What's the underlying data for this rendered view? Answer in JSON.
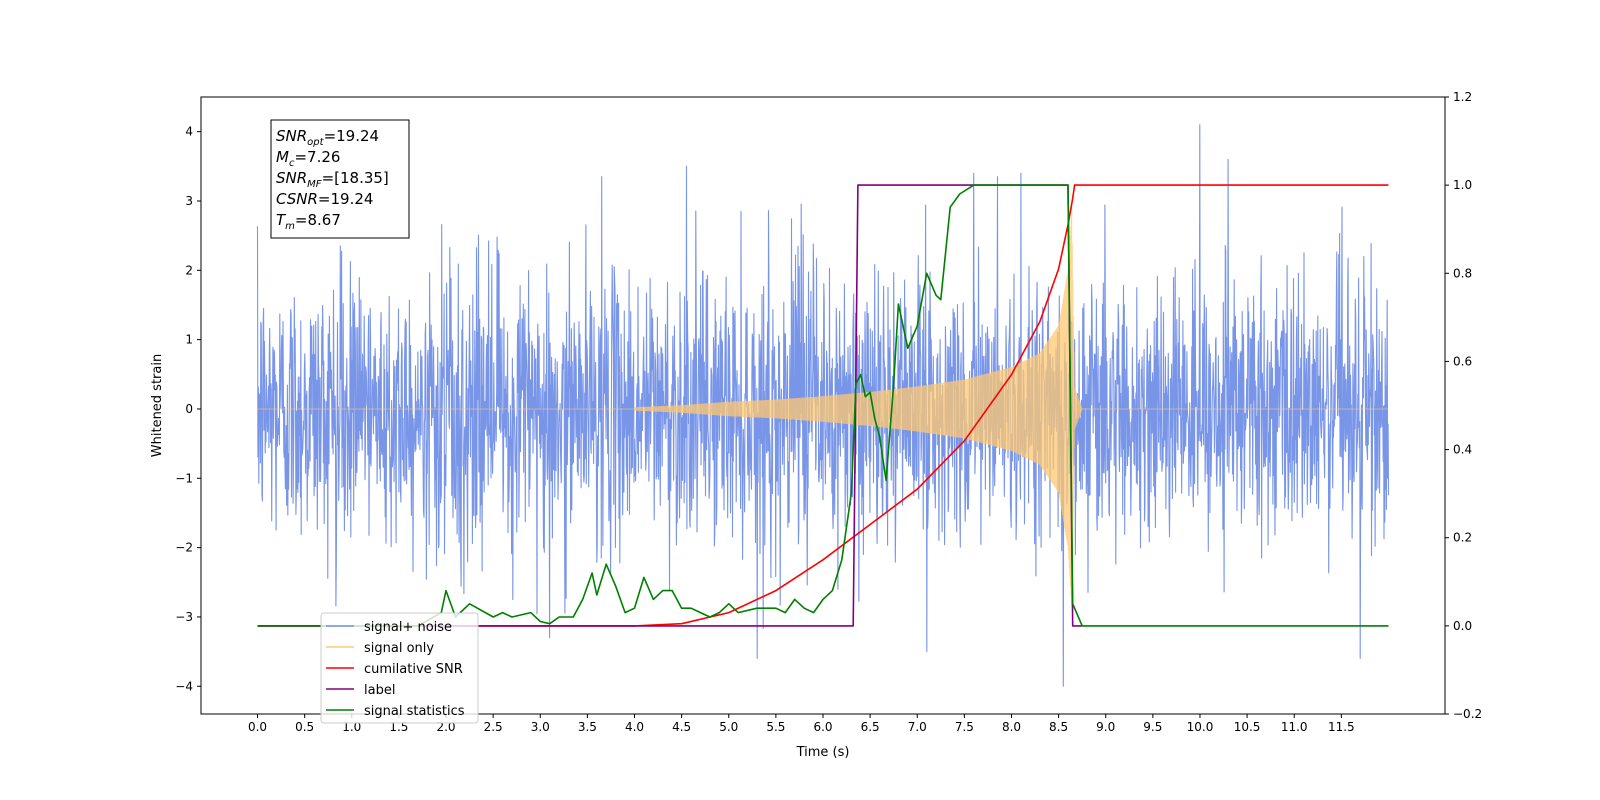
{
  "chart_data": {
    "type": "line",
    "title": "",
    "xlabel": "Time (s)",
    "ylabel": "Whitened strain",
    "xlim": [
      -0.6,
      12.6
    ],
    "ylim": [
      -4.4,
      4.5
    ],
    "y2lim": [
      -0.2,
      1.2
    ],
    "grid": false,
    "x_ticks": [
      0.0,
      0.5,
      1.0,
      1.5,
      2.0,
      2.5,
      3.0,
      3.5,
      4.0,
      4.5,
      5.0,
      5.5,
      6.0,
      6.5,
      7.0,
      7.5,
      8.0,
      8.5,
      9.0,
      9.5,
      10.0,
      10.5,
      11.0,
      11.5
    ],
    "x_tick_labels": [
      "0.0",
      "0.5",
      "1.0",
      "1.5",
      "2.0",
      "2.5",
      "3.0",
      "3.5",
      "4.0",
      "4.5",
      "5.0",
      "5.5",
      "6.0",
      "6.5",
      "7.0",
      "7.5",
      "8.0",
      "8.5",
      "9.0",
      "9.5",
      "10.0",
      "10.5",
      "11.0",
      "11.5"
    ],
    "y_ticks": [
      -4,
      -3,
      -2,
      -1,
      0,
      1,
      2,
      3,
      4
    ],
    "y_tick_labels": [
      "−4",
      "−3",
      "−2",
      "−1",
      "0",
      "1",
      "2",
      "3",
      "4"
    ],
    "y2_ticks": [
      -0.2,
      0.0,
      0.2,
      0.4,
      0.6,
      0.8,
      1.0,
      1.2
    ],
    "y2_tick_labels": [
      "−0.2",
      "0.0",
      "0.2",
      "0.4",
      "0.6",
      "0.8",
      "1.0",
      "1.2"
    ],
    "annotation": [
      {
        "main": "SNR",
        "sub": "opt",
        "rest": "=19.24"
      },
      {
        "main": "M",
        "sub": "c",
        "rest": "=7.26"
      },
      {
        "main": "SNR",
        "sub": "MF",
        "rest": "=[18.35]"
      },
      {
        "main": "CSNR",
        "sub": "",
        "rest": "=19.24"
      },
      {
        "main": "T",
        "sub": "m",
        "rest": "=8.67"
      }
    ],
    "legend_placement": "lower-left",
    "legend": [
      {
        "label": "signal+ noise",
        "color": "#7895e8"
      },
      {
        "label": "signal only",
        "color": "#ffc870"
      },
      {
        "label": "cumilative SNR",
        "color": "#ff0000"
      },
      {
        "label": "label",
        "color": "#800080"
      },
      {
        "label": "signal statistics",
        "color": "#008000"
      }
    ],
    "series": [
      {
        "name": "signal+ noise",
        "axis": "left",
        "color": "#7895e8",
        "kind": "noise",
        "x_range": [
          0.0,
          12.0
        ],
        "sigma": 0.95,
        "peaks": [
          [
            10.0,
            4.1
          ],
          [
            4.55,
            3.5
          ],
          [
            7.6,
            3.4
          ],
          [
            7.85,
            3.35
          ],
          [
            8.1,
            3.4
          ],
          [
            10.3,
            3.6
          ],
          [
            3.65,
            3.35
          ],
          [
            8.55,
            -4.0
          ],
          [
            11.7,
            -3.6
          ],
          [
            5.3,
            -3.6
          ],
          [
            7.1,
            -3.5
          ],
          [
            3.1,
            -3.3
          ]
        ]
      },
      {
        "name": "signal only",
        "axis": "left",
        "color": "#ffc870",
        "kind": "chirp",
        "x_range": [
          0.0,
          12.0
        ],
        "t_merge": 8.67,
        "envelope": [
          [
            4.0,
            0.02
          ],
          [
            4.5,
            0.05
          ],
          [
            5.0,
            0.1
          ],
          [
            5.5,
            0.13
          ],
          [
            6.0,
            0.18
          ],
          [
            6.5,
            0.24
          ],
          [
            7.0,
            0.32
          ],
          [
            7.5,
            0.42
          ],
          [
            8.0,
            0.6
          ],
          [
            8.3,
            0.8
          ],
          [
            8.5,
            1.2
          ],
          [
            8.6,
            2.0
          ],
          [
            8.64,
            2.9
          ],
          [
            8.67,
            0.3
          ],
          [
            8.75,
            0.0
          ]
        ]
      },
      {
        "name": "cumilative SNR",
        "axis": "right",
        "color": "#ff0000",
        "points": [
          [
            0.0,
            0.0
          ],
          [
            4.0,
            0.0
          ],
          [
            4.5,
            0.005
          ],
          [
            5.0,
            0.03
          ],
          [
            5.5,
            0.08
          ],
          [
            6.0,
            0.15
          ],
          [
            6.5,
            0.23
          ],
          [
            7.0,
            0.31
          ],
          [
            7.5,
            0.42
          ],
          [
            8.0,
            0.57
          ],
          [
            8.3,
            0.69
          ],
          [
            8.5,
            0.81
          ],
          [
            8.6,
            0.91
          ],
          [
            8.65,
            0.97
          ],
          [
            8.67,
            1.0
          ],
          [
            12.0,
            1.0
          ]
        ]
      },
      {
        "name": "label",
        "axis": "right",
        "color": "#800080",
        "points": [
          [
            0.0,
            0.0
          ],
          [
            6.32,
            0.0
          ],
          [
            6.37,
            1.0
          ],
          [
            8.6,
            1.0
          ],
          [
            8.65,
            0.0
          ],
          [
            8.75,
            0.0
          ]
        ]
      },
      {
        "name": "signal statistics",
        "axis": "right",
        "color": "#008000",
        "points": [
          [
            0.0,
            0.0
          ],
          [
            1.7,
            0.0
          ],
          [
            1.95,
            0.03
          ],
          [
            2.0,
            0.08
          ],
          [
            2.1,
            0.02
          ],
          [
            2.25,
            0.05
          ],
          [
            2.5,
            0.02
          ],
          [
            2.6,
            0.03
          ],
          [
            2.7,
            0.02
          ],
          [
            2.9,
            0.03
          ],
          [
            3.0,
            0.01
          ],
          [
            3.1,
            0.005
          ],
          [
            3.2,
            0.02
          ],
          [
            3.35,
            0.02
          ],
          [
            3.45,
            0.06
          ],
          [
            3.55,
            0.12
          ],
          [
            3.6,
            0.07
          ],
          [
            3.7,
            0.14
          ],
          [
            3.8,
            0.09
          ],
          [
            3.9,
            0.03
          ],
          [
            4.0,
            0.04
          ],
          [
            4.1,
            0.11
          ],
          [
            4.2,
            0.06
          ],
          [
            4.3,
            0.08
          ],
          [
            4.4,
            0.08
          ],
          [
            4.5,
            0.04
          ],
          [
            4.6,
            0.04
          ],
          [
            4.7,
            0.03
          ],
          [
            4.8,
            0.02
          ],
          [
            4.9,
            0.03
          ],
          [
            5.0,
            0.05
          ],
          [
            5.1,
            0.03
          ],
          [
            5.3,
            0.04
          ],
          [
            5.5,
            0.04
          ],
          [
            5.6,
            0.03
          ],
          [
            5.7,
            0.06
          ],
          [
            5.8,
            0.04
          ],
          [
            5.9,
            0.03
          ],
          [
            6.0,
            0.06
          ],
          [
            6.1,
            0.08
          ],
          [
            6.2,
            0.15
          ],
          [
            6.3,
            0.3
          ],
          [
            6.35,
            0.55
          ],
          [
            6.4,
            0.57
          ],
          [
            6.45,
            0.52
          ],
          [
            6.5,
            0.53
          ],
          [
            6.55,
            0.47
          ],
          [
            6.6,
            0.43
          ],
          [
            6.67,
            0.33
          ],
          [
            6.75,
            0.55
          ],
          [
            6.8,
            0.73
          ],
          [
            6.9,
            0.63
          ],
          [
            7.0,
            0.68
          ],
          [
            7.1,
            0.8
          ],
          [
            7.2,
            0.75
          ],
          [
            7.25,
            0.74
          ],
          [
            7.35,
            0.95
          ],
          [
            7.45,
            0.98
          ],
          [
            7.6,
            1.0
          ],
          [
            8.6,
            1.0
          ],
          [
            8.65,
            0.05
          ],
          [
            8.75,
            0.0
          ],
          [
            12.0,
            0.0
          ]
        ]
      }
    ]
  }
}
